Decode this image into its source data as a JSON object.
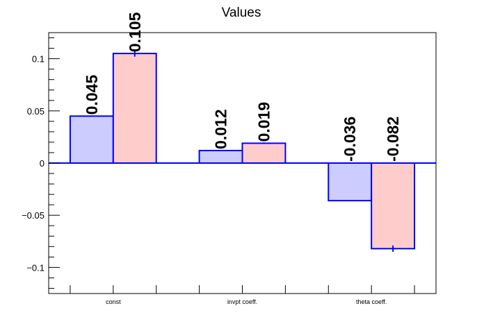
{
  "chart_data": {
    "type": "bar",
    "title": "Values",
    "xlabel": "",
    "ylabel": "",
    "categories": [
      "const",
      "invpt coeff.",
      "theta coeff."
    ],
    "series": [
      {
        "values": [
          0.045,
          0.012,
          -0.036
        ],
        "labels": [
          "0.045",
          "0.012",
          "-0.036"
        ],
        "errors": [
          0,
          0,
          0
        ]
      },
      {
        "values": [
          0.105,
          0.019,
          -0.082
        ],
        "labels": [
          "0.105",
          "0.019",
          "-0.082"
        ],
        "errors": [
          0.003,
          0.0007,
          0.003
        ]
      }
    ],
    "ylim": [
      -0.125,
      0.125
    ],
    "yticks": [
      {
        "value": 0.1,
        "label": "0.1"
      },
      {
        "value": 0.05,
        "label": "0.05"
      },
      {
        "value": 0,
        "label": "0"
      },
      {
        "value": -0.05,
        "label": "−0.05"
      },
      {
        "value": -0.1,
        "label": "−0.1"
      }
    ],
    "grid": false,
    "legend": "none",
    "colors": {
      "series1_fill": "#ccccff",
      "series2_fill": "#ffcccc",
      "bar_edge": "#0000ff",
      "axis": "#000000"
    }
  }
}
